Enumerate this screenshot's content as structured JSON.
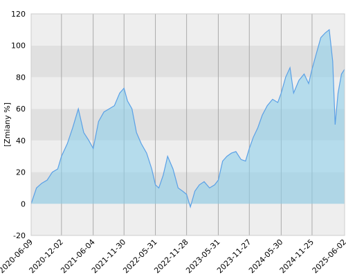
{
  "chart_data": {
    "type": "area",
    "y_label": "[Zmiany %]",
    "x": [
      "2020-06-09",
      "2020-07-10",
      "2020-08-10",
      "2020-09-10",
      "2020-10-10",
      "2020-11-10",
      "2020-12-02",
      "2021-01-05",
      "2021-02-05",
      "2021-03-10",
      "2021-04-10",
      "2021-05-10",
      "2021-06-04",
      "2021-07-05",
      "2021-08-05",
      "2021-09-05",
      "2021-10-05",
      "2021-11-05",
      "2021-11-30",
      "2021-12-20",
      "2022-01-15",
      "2022-02-10",
      "2022-03-10",
      "2022-04-10",
      "2022-05-10",
      "2022-05-31",
      "2022-06-20",
      "2022-07-15",
      "2022-08-10",
      "2022-09-10",
      "2022-10-10",
      "2022-11-05",
      "2022-11-28",
      "2022-12-20",
      "2023-01-15",
      "2023-02-10",
      "2023-03-10",
      "2023-04-10",
      "2023-05-10",
      "2023-05-31",
      "2023-06-25",
      "2023-07-20",
      "2023-08-15",
      "2023-09-10",
      "2023-10-10",
      "2023-11-05",
      "2023-11-27",
      "2023-12-20",
      "2024-01-15",
      "2024-02-10",
      "2024-03-10",
      "2024-04-10",
      "2024-05-10",
      "2024-05-30",
      "2024-06-25",
      "2024-07-20",
      "2024-08-10",
      "2024-09-10",
      "2024-10-10",
      "2024-11-05",
      "2024-11-25",
      "2024-12-20",
      "2025-01-15",
      "2025-02-10",
      "2025-03-05",
      "2025-03-25",
      "2025-04-08",
      "2025-04-25",
      "2025-05-15",
      "2025-06-02"
    ],
    "values": [
      0,
      10,
      13,
      15,
      20,
      22,
      30,
      38,
      48,
      60,
      45,
      40,
      35,
      52,
      58,
      60,
      62,
      70,
      73,
      65,
      60,
      45,
      38,
      32,
      22,
      12,
      10,
      18,
      30,
      22,
      10,
      8,
      6,
      -2,
      8,
      12,
      14,
      10,
      12,
      15,
      27,
      30,
      32,
      33,
      28,
      27,
      35,
      42,
      48,
      56,
      62,
      66,
      64,
      70,
      80,
      86,
      70,
      78,
      82,
      76,
      85,
      95,
      105,
      108,
      110,
      90,
      50,
      70,
      82,
      85
    ],
    "color": "#5aa0e6",
    "xlim": [
      "2020-06-09",
      "2025-06-02"
    ],
    "xticks": [
      "2020-06-09",
      "2020-12-02",
      "2021-06-04",
      "2021-11-30",
      "2022-05-31",
      "2022-11-28",
      "2023-05-31",
      "2023-11-27",
      "2024-05-30",
      "2024-11-25",
      "2025-06-02"
    ],
    "ylim": [
      -20,
      120
    ],
    "yticks": [
      -20,
      0,
      20,
      40,
      60,
      80,
      100,
      120
    ],
    "grid": true
  }
}
